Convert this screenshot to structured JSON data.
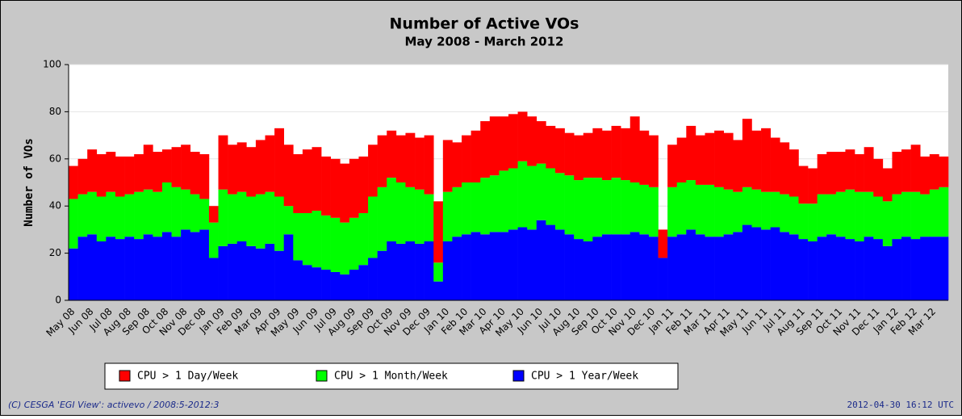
{
  "chart_data": {
    "type": "stacked_bar",
    "title": "Number of Active VOs",
    "subtitle": "May 2008 - March 2012",
    "y_label": "Number of VOs",
    "footer_left": "(C) CESGA 'EGI View': activevo / 2008:5-2012:3",
    "footer_right": "2012-04-30 16:12 UTC",
    "ylim": [
      0,
      100
    ],
    "yticks": [
      0,
      20,
      40,
      60,
      80,
      100
    ],
    "grid": true,
    "categories": [
      "May 08",
      null,
      "Jun 08",
      null,
      "Jul 08",
      null,
      "Aug 08",
      null,
      "Sep 08",
      null,
      "Oct 08",
      null,
      "Nov 08",
      null,
      "Dec 08",
      null,
      "Jan 09",
      null,
      "Feb 09",
      null,
      "Mar 09",
      null,
      "Apr 09",
      null,
      "May 09",
      null,
      "Jun 09",
      null,
      "Jul 09",
      null,
      "Aug 09",
      null,
      "Sep 09",
      null,
      "Oct 09",
      null,
      "Nov 09",
      null,
      "Dec 09",
      null,
      "Jan 10",
      null,
      "Feb 10",
      null,
      "Mar 10",
      null,
      "Apr 10",
      null,
      "May 10",
      null,
      "Jun 10",
      null,
      "Jul 10",
      null,
      "Aug 10",
      null,
      "Sep 10",
      null,
      "Oct 10",
      null,
      "Nov 10",
      null,
      "Dec 10",
      null,
      "Jan 11",
      null,
      "Feb 11",
      null,
      "Mar 11",
      null,
      "Apr 11",
      null,
      "May 11",
      null,
      "Jun 11",
      null,
      "Jul 11",
      null,
      "Aug 11",
      null,
      "Sep 11",
      null,
      "Oct 11",
      null,
      "Nov 11",
      null,
      "Dec 11",
      null,
      "Jan 12",
      null,
      "Feb 12",
      null,
      "Mar 12",
      null
    ],
    "series": [
      {
        "name": "CPU > 1 Day/Week",
        "color": "#ff0000",
        "values": [
          14,
          15,
          18,
          18,
          17,
          17,
          16,
          16,
          19,
          17,
          14,
          17,
          19,
          18,
          19,
          7,
          23,
          21,
          21,
          21,
          23,
          24,
          29,
          26,
          25,
          27,
          27,
          25,
          25,
          25,
          25,
          24,
          22,
          22,
          20,
          20,
          23,
          22,
          25,
          26,
          22,
          19,
          20,
          22,
          24,
          25,
          23,
          23,
          21,
          21,
          18,
          18,
          19,
          18,
          19,
          19,
          21,
          21,
          22,
          22,
          28,
          23,
          22,
          12,
          18,
          19,
          23,
          21,
          22,
          24,
          24,
          22,
          29,
          25,
          27,
          23,
          22,
          20,
          16,
          15,
          17,
          18,
          17,
          17,
          16,
          19,
          16,
          14,
          18,
          18,
          20,
          16,
          15,
          13
        ]
      },
      {
        "name": "CPU > 1 Month/Week",
        "color": "#00ff00",
        "values": [
          21,
          18,
          18,
          19,
          19,
          18,
          18,
          20,
          19,
          19,
          21,
          21,
          17,
          16,
          13,
          15,
          24,
          21,
          21,
          21,
          23,
          22,
          23,
          12,
          20,
          22,
          24,
          23,
          23,
          22,
          22,
          22,
          26,
          27,
          27,
          26,
          23,
          23,
          20,
          8,
          21,
          21,
          22,
          21,
          24,
          24,
          26,
          26,
          28,
          27,
          24,
          24,
          24,
          25,
          25,
          27,
          25,
          23,
          24,
          23,
          21,
          21,
          21,
          0,
          21,
          22,
          21,
          21,
          22,
          21,
          19,
          17,
          16,
          16,
          16,
          15,
          16,
          16,
          15,
          16,
          18,
          17,
          19,
          21,
          21,
          19,
          18,
          19,
          19,
          19,
          20,
          18,
          20,
          21
        ]
      },
      {
        "name": "CPU > 1 Year/Week",
        "color": "#0000ff",
        "values": [
          22,
          27,
          28,
          25,
          27,
          26,
          27,
          26,
          28,
          27,
          29,
          27,
          30,
          29,
          30,
          18,
          23,
          24,
          25,
          23,
          22,
          24,
          21,
          28,
          17,
          15,
          14,
          13,
          12,
          11,
          13,
          15,
          18,
          21,
          25,
          24,
          25,
          24,
          25,
          8,
          25,
          27,
          28,
          29,
          28,
          29,
          29,
          30,
          31,
          30,
          34,
          32,
          30,
          28,
          26,
          25,
          27,
          28,
          28,
          28,
          29,
          28,
          27,
          18,
          27,
          28,
          30,
          28,
          27,
          27,
          28,
          29,
          32,
          31,
          30,
          31,
          29,
          28,
          26,
          25,
          27,
          28,
          27,
          26,
          25,
          27,
          26,
          23,
          26,
          27,
          26,
          27,
          27,
          27
        ]
      }
    ]
  }
}
